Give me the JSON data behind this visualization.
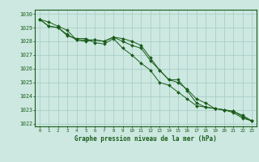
{
  "x": [
    0,
    1,
    2,
    3,
    4,
    5,
    6,
    7,
    8,
    9,
    10,
    11,
    12,
    13,
    14,
    15,
    16,
    17,
    18,
    19,
    20,
    21,
    22,
    23
  ],
  "line1": [
    1029.6,
    1029.4,
    1029.1,
    1028.8,
    1028.1,
    1028.0,
    1028.1,
    1028.0,
    1028.3,
    1028.0,
    1027.7,
    1027.5,
    1026.6,
    1025.9,
    1025.2,
    1025.0,
    1024.5,
    1023.8,
    1023.5,
    1023.1,
    1023.0,
    1022.9,
    1022.6,
    1022.2
  ],
  "line2": [
    1029.6,
    1029.1,
    1029.0,
    1028.4,
    1028.2,
    1028.2,
    1027.9,
    1027.8,
    1028.2,
    1027.5,
    1027.0,
    1026.4,
    1025.9,
    1025.0,
    1024.8,
    1024.3,
    1023.8,
    1023.3,
    1023.2,
    1023.1,
    1023.0,
    1022.8,
    1022.4,
    1022.2
  ],
  "line3": [
    1029.6,
    1029.1,
    1029.0,
    1028.5,
    1028.1,
    1028.1,
    1028.1,
    1028.0,
    1028.3,
    1028.2,
    1028.0,
    1027.7,
    1026.8,
    1025.9,
    1025.2,
    1025.2,
    1024.4,
    1023.5,
    1023.2,
    1023.1,
    1023.0,
    1022.9,
    1022.5,
    1022.2
  ],
  "bg_color": "#cce8e0",
  "grid_color": "#aacfc8",
  "line_color": "#1a5c1a",
  "marker_color": "#1a5c1a",
  "xlabel": "Graphe pression niveau de la mer (hPa)",
  "xlabel_color": "#1a5c1a",
  "axis_color": "#1a5c1a",
  "tick_color": "#1a5c1a",
  "ylim_min": 1021.8,
  "ylim_max": 1030.3,
  "xlim_min": -0.5,
  "xlim_max": 23.5
}
